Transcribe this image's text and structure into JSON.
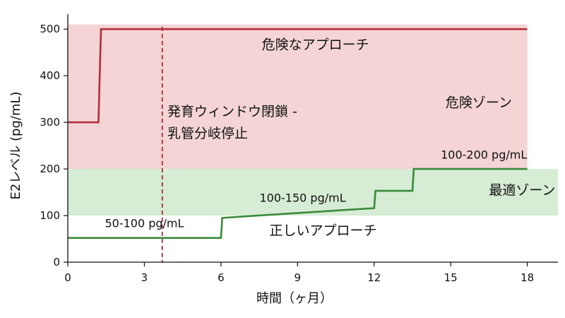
{
  "chart_data": {
    "type": "line",
    "xlabel": "時間（ヶ月）",
    "ylabel": "E2レベル (pg/mL)",
    "xlim": [
      0,
      19.2
    ],
    "ylim": [
      0,
      520
    ],
    "x_ticks": [
      0,
      3,
      6,
      9,
      12,
      15,
      18
    ],
    "y_ticks": [
      0,
      100,
      200,
      300,
      400,
      500
    ],
    "grid": false,
    "zones": [
      {
        "label": "危険ゾーン",
        "y_range": [
          200,
          510
        ],
        "x_range": [
          0,
          18
        ],
        "color": "#f4d4d4"
      },
      {
        "label": "最適ゾーン",
        "y_range": [
          100,
          200
        ],
        "x_range": [
          0,
          19.2
        ],
        "color": "#d6ecd4"
      }
    ],
    "vertical_marker": {
      "x": 3.7,
      "label_line1": "発育ウィンドウ閉鎖 -",
      "label_line2": "乳管分岐停止",
      "color": "#a52a3a"
    },
    "series": [
      {
        "name": "危険なアプローチ",
        "color": "#b0303c",
        "x": [
          0,
          1.2,
          1.3,
          18
        ],
        "y": [
          300,
          300,
          500,
          500
        ]
      },
      {
        "name": "正しいアプローチ",
        "color": "#3a8a3a",
        "x": [
          0,
          6,
          6.05,
          12,
          12.05,
          13.5,
          13.55,
          18
        ],
        "y": [
          52,
          52,
          95,
          116,
          153,
          153,
          200,
          200
        ]
      }
    ],
    "annotations": [
      {
        "id": "danger-approach",
        "text": "危険なアプローチ",
        "x": 9.7,
        "y": 457,
        "style": "big"
      },
      {
        "id": "danger-zone",
        "text": "危険ゾーン",
        "x": 16.1,
        "y": 333,
        "style": "big"
      },
      {
        "id": "optimal-zone",
        "text": "最適ゾーン",
        "x": 17.8,
        "y": 145,
        "style": "big"
      },
      {
        "id": "correct-approach",
        "text": "正しいアプローチ",
        "x": 10,
        "y": 58,
        "style": "big"
      },
      {
        "id": "label-50-100",
        "text": "50-100 pg/mL",
        "x": 3,
        "y": 75,
        "style": "small"
      },
      {
        "id": "label-100-150",
        "text": "100-150 pg/mL",
        "x": 9.2,
        "y": 130,
        "style": "small"
      },
      {
        "id": "label-100-200",
        "text": "100-200 pg/mL",
        "x": 16.3,
        "y": 222,
        "style": "small"
      }
    ]
  }
}
